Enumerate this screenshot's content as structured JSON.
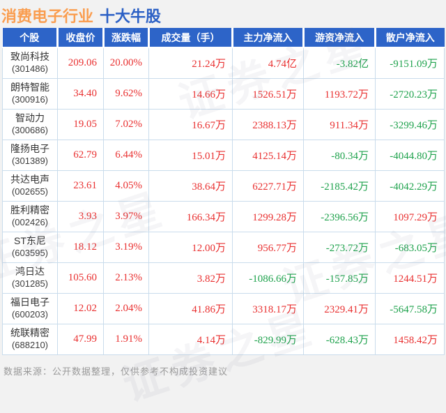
{
  "title": {
    "industry": "消费电子行业",
    "suffix": "十大牛股"
  },
  "footer": "数据来源：公开数据整理，仅供参考不构成投资建议",
  "watermark": "证券之星",
  "colors": {
    "up": "#e93030",
    "down": "#1ea24c",
    "header_bg": "#2d64c8",
    "title_industry": "#fa9d4f",
    "title_suffix": "#2b60c5",
    "border": "#c9dcec",
    "footer_text": "#999999"
  },
  "chart_data": {
    "type": "table",
    "title": "消费电子行业 十大牛股",
    "columns": [
      "个股",
      "收盘价",
      "涨跌幅",
      "成交量（手）",
      "主力净流入",
      "游资净流入",
      "散户净流入"
    ],
    "rows": [
      {
        "name": "致尚科技",
        "code": "(301486)",
        "values": [
          {
            "t": "209.06",
            "c": "up"
          },
          {
            "t": "20.00%",
            "c": "up"
          },
          {
            "t": "21.24万",
            "c": "up"
          },
          {
            "t": "4.74亿",
            "c": "up"
          },
          {
            "t": "-3.82亿",
            "c": "down"
          },
          {
            "t": "-9151.09万",
            "c": "down"
          }
        ]
      },
      {
        "name": "朗特智能",
        "code": "(300916)",
        "values": [
          {
            "t": "34.40",
            "c": "up"
          },
          {
            "t": "9.62%",
            "c": "up"
          },
          {
            "t": "14.66万",
            "c": "up"
          },
          {
            "t": "1526.51万",
            "c": "up"
          },
          {
            "t": "1193.72万",
            "c": "up"
          },
          {
            "t": "-2720.23万",
            "c": "down"
          }
        ]
      },
      {
        "name": "智动力",
        "code": "(300686)",
        "values": [
          {
            "t": "19.05",
            "c": "up"
          },
          {
            "t": "7.02%",
            "c": "up"
          },
          {
            "t": "16.67万",
            "c": "up"
          },
          {
            "t": "2388.13万",
            "c": "up"
          },
          {
            "t": "911.34万",
            "c": "up"
          },
          {
            "t": "-3299.46万",
            "c": "down"
          }
        ]
      },
      {
        "name": "隆扬电子",
        "code": "(301389)",
        "values": [
          {
            "t": "62.79",
            "c": "up"
          },
          {
            "t": "6.44%",
            "c": "up"
          },
          {
            "t": "15.01万",
            "c": "up"
          },
          {
            "t": "4125.14万",
            "c": "up"
          },
          {
            "t": "-80.34万",
            "c": "down"
          },
          {
            "t": "-4044.80万",
            "c": "down"
          }
        ]
      },
      {
        "name": "共达电声",
        "code": "(002655)",
        "values": [
          {
            "t": "23.61",
            "c": "up"
          },
          {
            "t": "4.05%",
            "c": "up"
          },
          {
            "t": "38.64万",
            "c": "up"
          },
          {
            "t": "6227.71万",
            "c": "up"
          },
          {
            "t": "-2185.42万",
            "c": "down"
          },
          {
            "t": "-4042.29万",
            "c": "down"
          }
        ]
      },
      {
        "name": "胜利精密",
        "code": "(002426)",
        "values": [
          {
            "t": "3.93",
            "c": "up"
          },
          {
            "t": "3.97%",
            "c": "up"
          },
          {
            "t": "166.34万",
            "c": "up"
          },
          {
            "t": "1299.28万",
            "c": "up"
          },
          {
            "t": "-2396.56万",
            "c": "down"
          },
          {
            "t": "1097.29万",
            "c": "up"
          }
        ]
      },
      {
        "name": "ST东尼",
        "code": "(603595)",
        "values": [
          {
            "t": "18.12",
            "c": "up"
          },
          {
            "t": "3.19%",
            "c": "up"
          },
          {
            "t": "12.00万",
            "c": "up"
          },
          {
            "t": "956.77万",
            "c": "up"
          },
          {
            "t": "-273.72万",
            "c": "down"
          },
          {
            "t": "-683.05万",
            "c": "down"
          }
        ]
      },
      {
        "name": "鸿日达",
        "code": "(301285)",
        "values": [
          {
            "t": "105.60",
            "c": "up"
          },
          {
            "t": "2.13%",
            "c": "up"
          },
          {
            "t": "3.82万",
            "c": "up"
          },
          {
            "t": "-1086.66万",
            "c": "down"
          },
          {
            "t": "-157.85万",
            "c": "down"
          },
          {
            "t": "1244.51万",
            "c": "up"
          }
        ]
      },
      {
        "name": "福日电子",
        "code": "(600203)",
        "values": [
          {
            "t": "12.02",
            "c": "up"
          },
          {
            "t": "2.04%",
            "c": "up"
          },
          {
            "t": "41.86万",
            "c": "up"
          },
          {
            "t": "3318.17万",
            "c": "up"
          },
          {
            "t": "2329.41万",
            "c": "up"
          },
          {
            "t": "-5647.58万",
            "c": "down"
          }
        ]
      },
      {
        "name": "统联精密",
        "code": "(688210)",
        "values": [
          {
            "t": "47.99",
            "c": "up"
          },
          {
            "t": "1.91%",
            "c": "up"
          },
          {
            "t": "4.14万",
            "c": "up"
          },
          {
            "t": "-829.99万",
            "c": "down"
          },
          {
            "t": "-628.43万",
            "c": "down"
          },
          {
            "t": "1458.42万",
            "c": "up"
          }
        ]
      }
    ]
  }
}
